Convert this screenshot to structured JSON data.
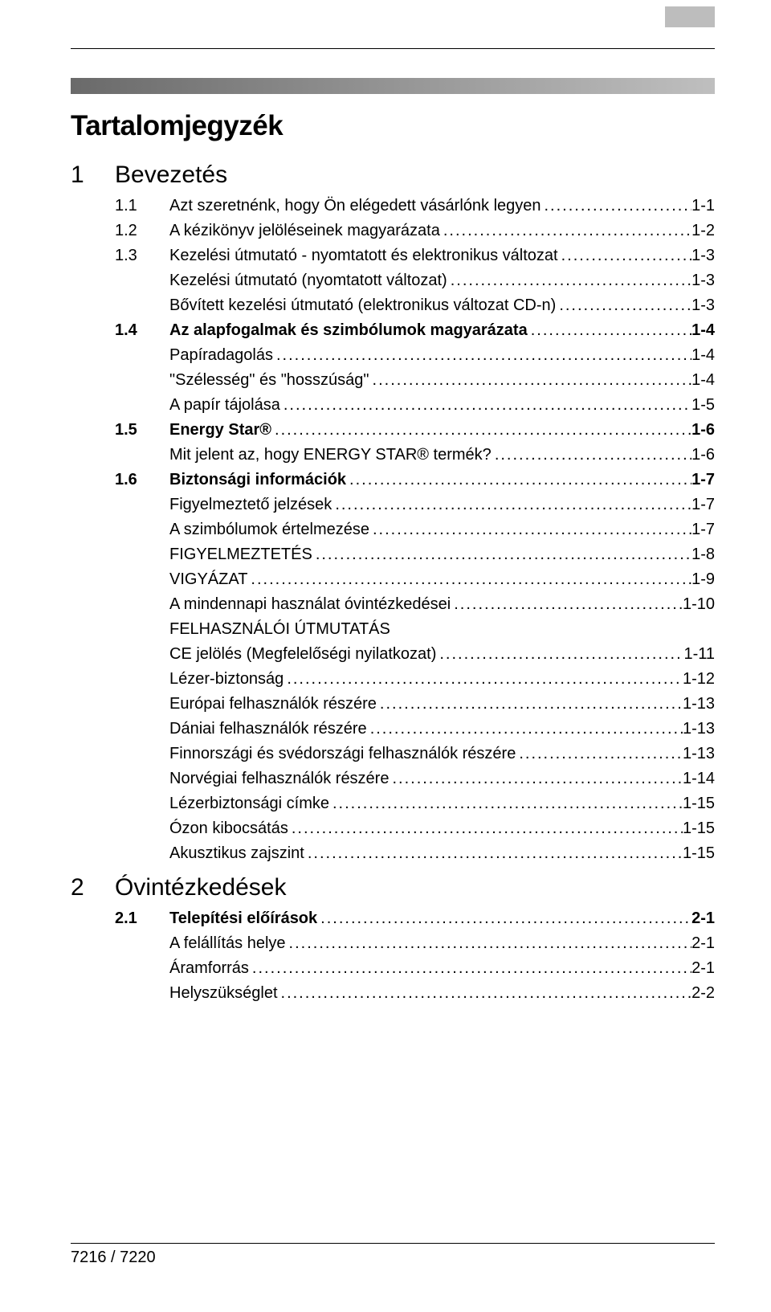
{
  "page_title": "Tartalomjegyzék",
  "footer": "7216 / 7220",
  "toc": [
    {
      "type": "chapter",
      "num": "1",
      "title": "Bevezetés"
    },
    {
      "type": "section",
      "num": "1.1",
      "title": "Azt szeretnénk, hogy Ön elégedett vásárlónk legyen",
      "page": "1-1",
      "plain": true
    },
    {
      "type": "section",
      "num": "1.2",
      "title": "A kézikönyv jelöléseinek magyarázata",
      "page": "1-2",
      "plain": true
    },
    {
      "type": "section",
      "num": "1.3",
      "title": "Kezelési útmutató - nyomtatott és elektronikus változat",
      "page": "1-3",
      "plain": true
    },
    {
      "type": "sub",
      "title": "Kezelési útmutató (nyomtatott változat)",
      "page": "1-3"
    },
    {
      "type": "sub",
      "title": "Bővített kezelési útmutató (elektronikus változat CD-n)",
      "page": "1-3"
    },
    {
      "type": "section",
      "num": "1.4",
      "title": "Az alapfogalmak és szimbólumok magyarázata",
      "page": "1-4"
    },
    {
      "type": "sub",
      "title": "Papíradagolás",
      "page": "1-4"
    },
    {
      "type": "sub",
      "title": "\"Szélesség\" és \"hosszúság\"",
      "page": "1-4"
    },
    {
      "type": "sub",
      "title": "A papír tájolása",
      "page": "1-5"
    },
    {
      "type": "section",
      "num": "1.5",
      "title": "Energy Star®",
      "page": "1-6"
    },
    {
      "type": "sub",
      "title": "Mit jelent az, hogy ENERGY STAR® termék?",
      "page": "1-6"
    },
    {
      "type": "section",
      "num": "1.6",
      "title": "Biztonsági információk",
      "page": "1-7"
    },
    {
      "type": "sub",
      "title": "Figyelmeztető jelzések",
      "page": "1-7"
    },
    {
      "type": "sub",
      "title": "A szimbólumok értelmezése",
      "page": "1-7"
    },
    {
      "type": "sub",
      "title": "FIGYELMEZTETÉS",
      "page": "1-8"
    },
    {
      "type": "sub",
      "title": "VIGYÁZAT",
      "page": "1-9"
    },
    {
      "type": "sub",
      "title": "A mindennapi használat óvintézkedései",
      "page": "1-10"
    },
    {
      "type": "sub",
      "title": "FELHASZNÁLÓI ÚTMUTATÁS",
      "nopage": true
    },
    {
      "type": "sub",
      "title": "CE jelölés (Megfelelőségi nyilatkozat)",
      "page": "1-11"
    },
    {
      "type": "sub",
      "title": "Lézer-biztonság",
      "page": "1-12"
    },
    {
      "type": "sub",
      "title": "Európai felhasználók részére",
      "page": "1-13"
    },
    {
      "type": "sub",
      "title": "Dániai felhasználók részére",
      "page": "1-13"
    },
    {
      "type": "sub",
      "title": "Finnországi és svédországi felhasználók részére",
      "page": "1-13"
    },
    {
      "type": "sub",
      "title": "Norvégiai felhasználók részére",
      "page": "1-14"
    },
    {
      "type": "sub",
      "title": "Lézerbiztonsági címke",
      "page": "1-15"
    },
    {
      "type": "sub",
      "title": "Ózon kibocsátás",
      "page": "1-15"
    },
    {
      "type": "sub",
      "title": "Akusztikus zajszint",
      "page": "1-15"
    },
    {
      "type": "chapter",
      "num": "2",
      "title": "Óvintézkedések"
    },
    {
      "type": "section",
      "num": "2.1",
      "title": "Telepítési előírások",
      "page": "2-1"
    },
    {
      "type": "sub",
      "title": "A felállítás helye",
      "page": "2-1"
    },
    {
      "type": "sub",
      "title": "Áramforrás",
      "page": "2-1"
    },
    {
      "type": "sub",
      "title": "Helyszükséglet",
      "page": "2-2"
    }
  ]
}
